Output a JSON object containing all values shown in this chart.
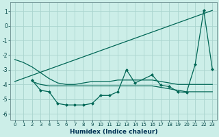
{
  "xlabel": "Humidex (Indice chaleur)",
  "ylabel": "",
  "background_color": "#cceee8",
  "grid_color": "#aad4ce",
  "line_color": "#006655",
  "ylim": [
    -6.4,
    1.6
  ],
  "xlim": [
    -0.5,
    23.5
  ],
  "yticks": [
    1,
    0,
    -1,
    -2,
    -3,
    -4,
    -5,
    -6
  ],
  "xticks": [
    0,
    1,
    2,
    3,
    4,
    5,
    6,
    7,
    8,
    9,
    10,
    11,
    12,
    13,
    14,
    15,
    16,
    17,
    18,
    19,
    20,
    21,
    22,
    23
  ],
  "series": [
    {
      "x": [
        0,
        1,
        2,
        3,
        4,
        5,
        6,
        7,
        8,
        9,
        10,
        11,
        12,
        13,
        14,
        15,
        16,
        17,
        18,
        19,
        20,
        21,
        22,
        23
      ],
      "y": [
        -2.3,
        -2.5,
        -2.8,
        -3.2,
        -3.6,
        -3.9,
        -4.0,
        -4.0,
        -3.9,
        -3.8,
        -3.8,
        -3.8,
        -3.7,
        -3.7,
        -3.7,
        -3.7,
        -3.7,
        -3.8,
        -3.9,
        -4.0,
        -4.0,
        -4.0,
        -4.0,
        -4.0
      ],
      "marker": false,
      "linewidth": 0.9
    },
    {
      "x": [
        2,
        3,
        4,
        5,
        6,
        7,
        8,
        9,
        10,
        11,
        12,
        13,
        14,
        16,
        17,
        18,
        19,
        20,
        21,
        22,
        23
      ],
      "y": [
        -3.7,
        -4.4,
        -4.5,
        -5.3,
        -5.4,
        -5.4,
        -5.4,
        -5.3,
        -4.75,
        -4.75,
        -4.5,
        -3.0,
        -3.9,
        -3.35,
        -4.05,
        -4.15,
        -4.5,
        -4.55,
        -2.65,
        1.05,
        -2.95
      ],
      "marker": true,
      "linewidth": 0.9
    },
    {
      "x": [
        0,
        23
      ],
      "y": [
        -3.8,
        1.05
      ],
      "marker": false,
      "linewidth": 0.9
    },
    {
      "x": [
        2,
        3,
        4,
        5,
        6,
        7,
        8,
        9,
        10,
        11,
        12,
        13,
        14,
        15,
        16,
        17,
        18,
        19,
        20,
        21,
        22,
        23
      ],
      "y": [
        -3.8,
        -4.0,
        -4.1,
        -4.1,
        -4.1,
        -4.1,
        -4.1,
        -4.1,
        -4.1,
        -4.1,
        -4.1,
        -4.1,
        -4.1,
        -4.1,
        -4.1,
        -4.2,
        -4.3,
        -4.4,
        -4.5,
        -4.5,
        -4.5,
        -4.5
      ],
      "marker": false,
      "linewidth": 0.9
    }
  ]
}
